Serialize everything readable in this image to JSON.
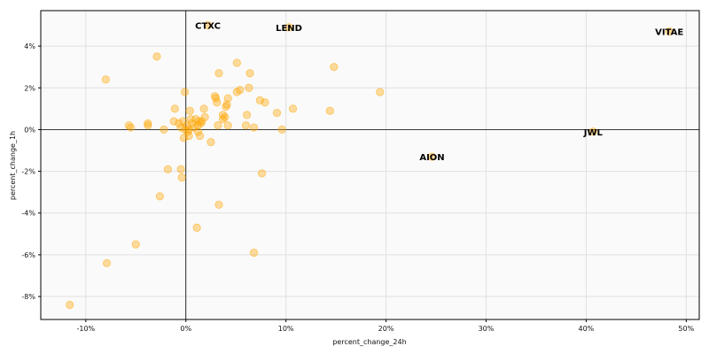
{
  "chart_data": {
    "type": "scatter",
    "xlabel": "percent_change_24h",
    "ylabel": "percent_change_1h",
    "xlim": [
      -0.145,
      0.513
    ],
    "ylim": [
      -0.091,
      0.057
    ],
    "x_ticks": [
      {
        "value": -0.1,
        "label": "-10%"
      },
      {
        "value": 0.0,
        "label": "0%"
      },
      {
        "value": 0.1,
        "label": "10%"
      },
      {
        "value": 0.2,
        "label": "20%"
      },
      {
        "value": 0.3,
        "label": "30%"
      },
      {
        "value": 0.4,
        "label": "40%"
      },
      {
        "value": 0.5,
        "label": "50%"
      }
    ],
    "y_ticks": [
      {
        "value": -0.08,
        "label": "-8%"
      },
      {
        "value": -0.06,
        "label": "-6%"
      },
      {
        "value": -0.04,
        "label": "-4%"
      },
      {
        "value": -0.02,
        "label": "-2%"
      },
      {
        "value": 0.0,
        "label": "0%"
      },
      {
        "value": 0.02,
        "label": "2%"
      },
      {
        "value": 0.04,
        "label": "4%"
      }
    ],
    "grid": true,
    "reference_lines": {
      "x": 0,
      "y": 0
    },
    "marker_color": "#ffa500",
    "annotations": [
      {
        "label": "CTXC",
        "x": 0.022,
        "y": 0.05
      },
      {
        "label": "LEND",
        "x": 0.103,
        "y": 0.049
      },
      {
        "label": "VITAE",
        "x": 0.483,
        "y": 0.047
      },
      {
        "label": "JWL",
        "x": 0.407,
        "y": -0.001
      },
      {
        "label": "AION",
        "x": 0.246,
        "y": -0.013
      }
    ],
    "points": [
      [
        0.022,
        0.05
      ],
      [
        0.103,
        0.049
      ],
      [
        0.483,
        0.047
      ],
      [
        0.407,
        -0.001
      ],
      [
        0.246,
        -0.013
      ],
      [
        -0.08,
        0.024
      ],
      [
        -0.029,
        0.035
      ],
      [
        -0.001,
        0.018
      ],
      [
        0.033,
        0.027
      ],
      [
        0.051,
        0.032
      ],
      [
        0.064,
        0.027
      ],
      [
        0.148,
        0.03
      ],
      [
        0.194,
        0.018
      ],
      [
        0.063,
        0.02
      ],
      [
        0.054,
        0.019
      ],
      [
        0.051,
        0.018
      ],
      [
        0.042,
        0.015
      ],
      [
        0.029,
        0.016
      ],
      [
        0.03,
        0.015
      ],
      [
        0.031,
        0.013
      ],
      [
        0.041,
        0.012
      ],
      [
        0.04,
        0.011
      ],
      [
        0.074,
        0.014
      ],
      [
        0.079,
        0.013
      ],
      [
        0.107,
        0.01
      ],
      [
        0.144,
        0.009
      ],
      [
        0.091,
        0.008
      ],
      [
        0.061,
        0.007
      ],
      [
        0.037,
        0.007
      ],
      [
        0.039,
        0.006
      ],
      [
        0.037,
        0.005
      ],
      [
        0.018,
        0.01
      ],
      [
        0.004,
        0.009
      ],
      [
        0.019,
        0.006
      ],
      [
        0.016,
        0.004
      ],
      [
        0.013,
        0.004
      ],
      [
        0.01,
        0.005
      ],
      [
        0.005,
        0.005
      ],
      [
        -0.003,
        0.004
      ],
      [
        -0.011,
        0.01
      ],
      [
        -0.012,
        0.004
      ],
      [
        -0.007,
        0.003
      ],
      [
        -0.038,
        0.003
      ],
      [
        -0.038,
        0.002
      ],
      [
        -0.057,
        0.002
      ],
      [
        -0.055,
        0.001
      ],
      [
        -0.022,
        0.0
      ],
      [
        -0.005,
        0.001
      ],
      [
        0.001,
        0.002
      ],
      [
        0.006,
        0.003
      ],
      [
        0.015,
        0.003
      ],
      [
        0.012,
        0.002
      ],
      [
        0.008,
        0.001
      ],
      [
        0.003,
        0.0
      ],
      [
        -0.001,
        0.0
      ],
      [
        0.002,
        -0.001
      ],
      [
        0.012,
        -0.001
      ],
      [
        0.014,
        -0.003
      ],
      [
        0.003,
        -0.003
      ],
      [
        -0.002,
        -0.004
      ],
      [
        0.025,
        -0.006
      ],
      [
        0.042,
        0.002
      ],
      [
        0.032,
        0.002
      ],
      [
        0.06,
        0.002
      ],
      [
        0.068,
        0.001
      ],
      [
        0.096,
        0.0
      ],
      [
        -0.018,
        -0.019
      ],
      [
        -0.005,
        -0.019
      ],
      [
        -0.004,
        -0.023
      ],
      [
        0.076,
        -0.021
      ],
      [
        -0.026,
        -0.032
      ],
      [
        0.033,
        -0.036
      ],
      [
        0.011,
        -0.047
      ],
      [
        -0.05,
        -0.055
      ],
      [
        0.068,
        -0.059
      ],
      [
        -0.079,
        -0.064
      ],
      [
        -0.116,
        -0.084
      ]
    ]
  }
}
